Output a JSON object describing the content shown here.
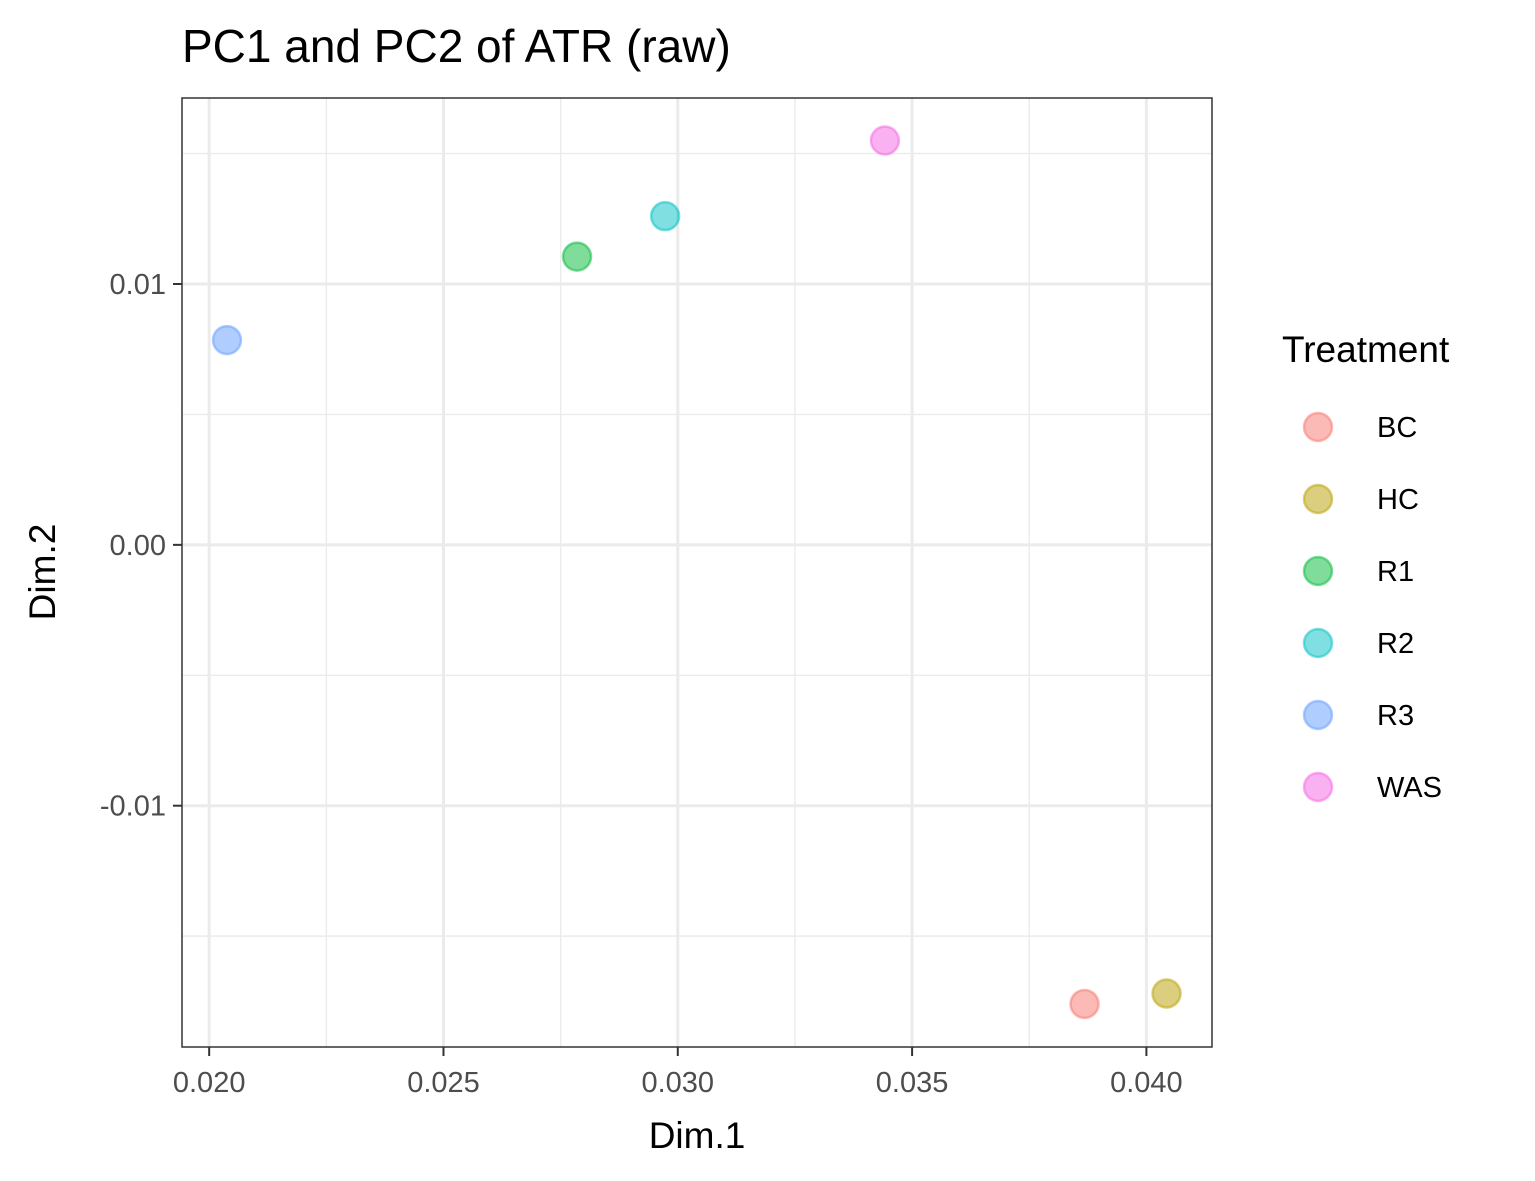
{
  "chart_data": {
    "type": "scatter",
    "title": "PC1 and PC2 of ATR (raw)",
    "xlabel": "Dim.1",
    "ylabel": "Dim.2",
    "xlim": [
      0.01942,
      0.0414
    ],
    "ylim": [
      -0.01925,
      0.01713
    ],
    "x_ticks": [
      0.02,
      0.025,
      0.03,
      0.035,
      0.04
    ],
    "x_tick_labels": [
      "0.020",
      "0.025",
      "0.030",
      "0.035",
      "0.040"
    ],
    "y_ticks": [
      -0.01,
      0.0,
      0.01
    ],
    "y_tick_labels": [
      "-0.01",
      "0.00",
      "0.01"
    ],
    "grid": true,
    "legend": {
      "title": "Treatment",
      "position": "right"
    },
    "series": [
      {
        "name": "BC",
        "color": "#F8766D",
        "points": [
          [
            0.03868,
            -0.0176
          ]
        ]
      },
      {
        "name": "HC",
        "color": "#B79F00",
        "points": [
          [
            0.04043,
            -0.0172
          ]
        ]
      },
      {
        "name": "R1",
        "color": "#00BA38",
        "points": [
          [
            0.02785,
            0.01105
          ]
        ]
      },
      {
        "name": "R2",
        "color": "#00BFC4",
        "points": [
          [
            0.02973,
            0.0126
          ]
        ]
      },
      {
        "name": "R3",
        "color": "#619CFF",
        "points": [
          [
            0.02038,
            0.00785
          ]
        ]
      },
      {
        "name": "WAS",
        "color": "#F564E3",
        "points": [
          [
            0.03442,
            0.0155
          ]
        ]
      }
    ]
  }
}
